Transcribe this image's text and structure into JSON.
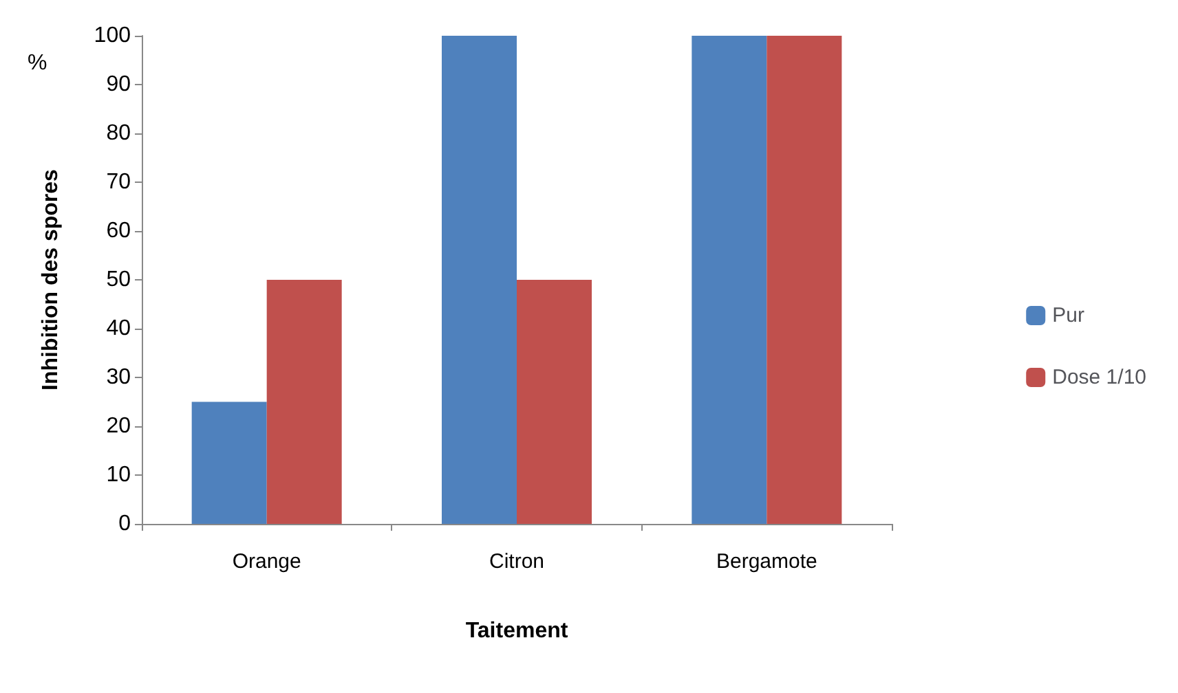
{
  "chart_data": {
    "type": "bar",
    "xlabel": "Taitement",
    "ylabel": "Inhibition des spores",
    "annotations": [
      "%"
    ],
    "categories": [
      "Orange",
      "Citron",
      "Bergamote"
    ],
    "series": [
      {
        "name": "Pur",
        "color": "#4f81bd",
        "values": [
          25,
          100,
          100
        ]
      },
      {
        "name": "Dose 1/10",
        "color": "#c0504d",
        "values": [
          50,
          50,
          100
        ]
      }
    ],
    "ylim": [
      0,
      100
    ],
    "yticks": [
      0,
      10,
      20,
      30,
      40,
      50,
      60,
      70,
      80,
      90,
      100
    ],
    "grid": false,
    "legend": "right"
  }
}
